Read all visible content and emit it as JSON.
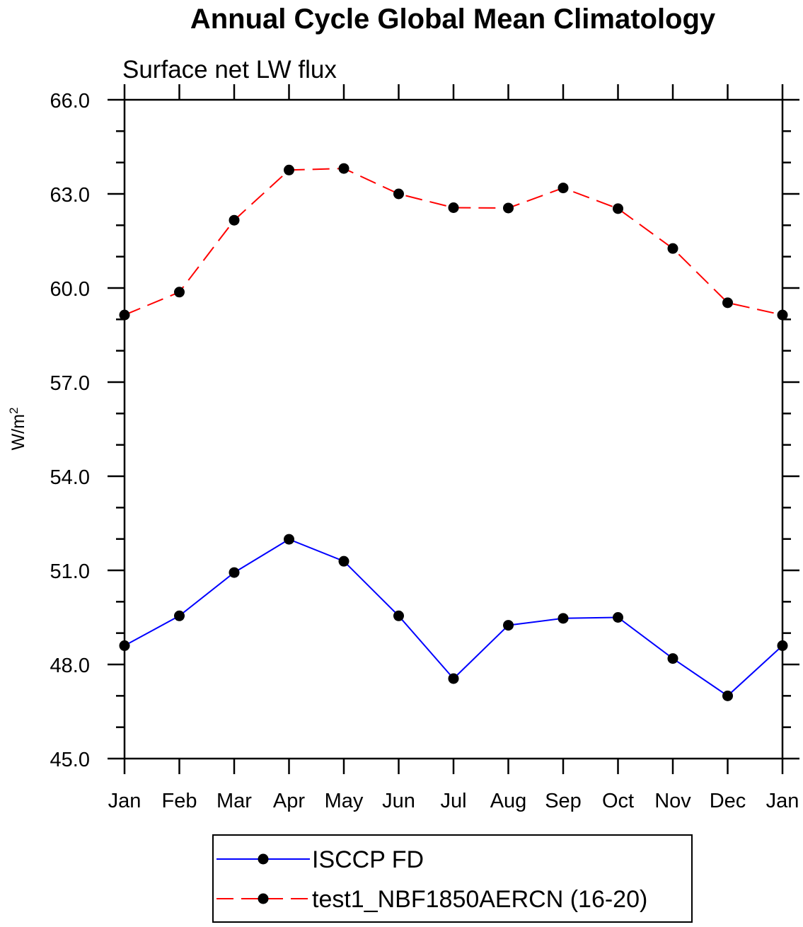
{
  "chart_data": {
    "type": "line",
    "title": "Annual Cycle Global Mean Climatology",
    "subtitle": "Surface net LW flux",
    "ylabel": "W/m",
    "ylabel_superscript": "2",
    "xlabel": "",
    "categories": [
      "Jan",
      "Feb",
      "Mar",
      "Apr",
      "May",
      "Jun",
      "Jul",
      "Aug",
      "Sep",
      "Oct",
      "Nov",
      "Dec",
      "Jan"
    ],
    "ylim": [
      45.0,
      66.0
    ],
    "yticks": [
      "45.0",
      "48.0",
      "51.0",
      "54.0",
      "57.0",
      "60.0",
      "63.0",
      "66.0"
    ],
    "grid": false,
    "legend_position": "bottom-center",
    "series": [
      {
        "name": "ISCCP FD",
        "color": "#0000ff",
        "line_style": "solid",
        "marker": "filled-circle",
        "values": [
          48.6,
          49.55,
          50.93,
          51.99,
          51.29,
          49.55,
          47.55,
          49.25,
          49.47,
          49.5,
          48.19,
          47.0,
          48.6
        ]
      },
      {
        "name": "test1_NBF1850AERCN (16-20)",
        "color": "#ff0000",
        "line_style": "dashed",
        "marker": "filled-circle",
        "values": [
          59.14,
          59.87,
          62.16,
          63.76,
          63.81,
          63.0,
          62.56,
          62.55,
          63.19,
          62.53,
          61.26,
          59.53,
          59.14
        ]
      }
    ]
  }
}
